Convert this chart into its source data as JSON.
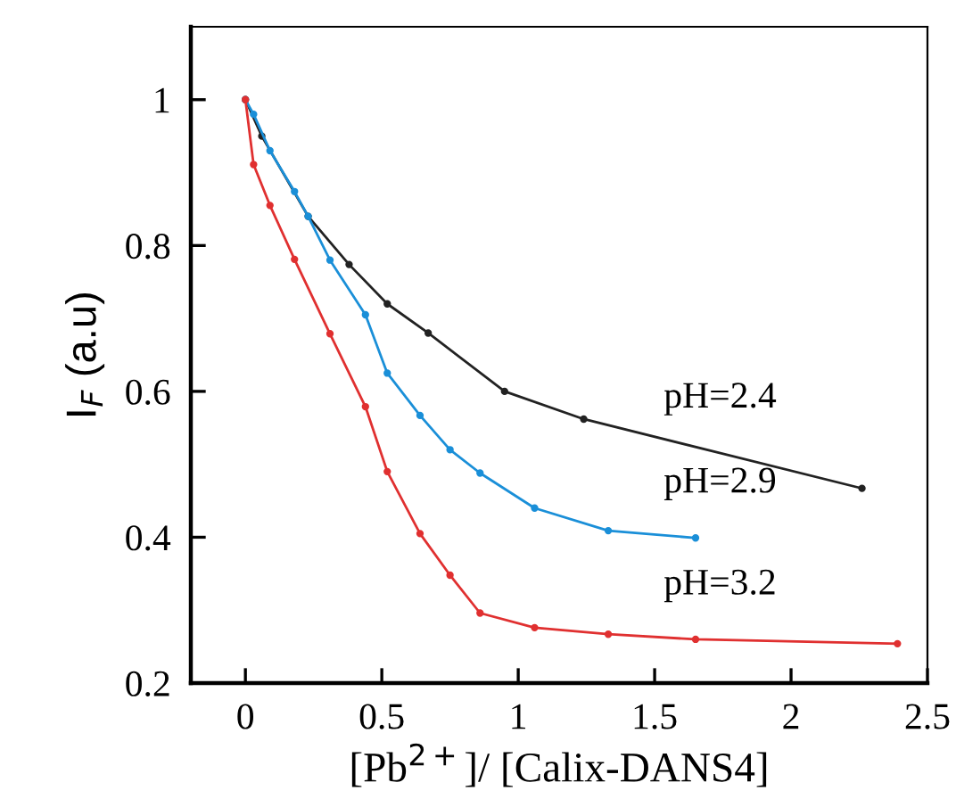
{
  "chart_data": {
    "type": "line",
    "xlabel": "[Pb$^{2+}$]/ [Calix-DANS4]",
    "ylabel": "I$_{F}$ (a.u)",
    "xlim": [
      -0.2,
      2.5
    ],
    "xticks": [
      0,
      0.5,
      1,
      1.5,
      2,
      2.5
    ],
    "ylim": [
      0.2,
      1.1
    ],
    "yticks": [
      0.2,
      0.4,
      0.6,
      0.8,
      1
    ],
    "grid": false,
    "legend": false,
    "marker": "circle",
    "line_style": "solid",
    "series": [
      {
        "name": "pH=2.4",
        "color": "#222222",
        "x": [
          0,
          0.06,
          0.23,
          0.38,
          0.52,
          0.67,
          0.95,
          1.24,
          2.26
        ],
        "values": [
          1.0,
          0.95,
          0.84,
          0.774,
          0.72,
          0.68,
          0.6,
          0.562,
          0.467
        ]
      },
      {
        "name": "pH=2.9",
        "color": "#1a8fd8",
        "x": [
          0,
          0.03,
          0.09,
          0.18,
          0.23,
          0.31,
          0.44,
          0.52,
          0.64,
          0.75,
          0.86,
          1.06,
          1.33,
          1.65
        ],
        "values": [
          1.0,
          0.98,
          0.93,
          0.874,
          0.84,
          0.78,
          0.705,
          0.625,
          0.567,
          0.52,
          0.488,
          0.44,
          0.409,
          0.399
        ]
      },
      {
        "name": "pH=3.2",
        "color": "#e03030",
        "x": [
          0,
          0.03,
          0.09,
          0.18,
          0.31,
          0.44,
          0.52,
          0.64,
          0.75,
          0.86,
          1.06,
          1.33,
          1.65,
          2.39
        ],
        "values": [
          1.0,
          0.911,
          0.855,
          0.781,
          0.679,
          0.579,
          0.49,
          0.405,
          0.348,
          0.296,
          0.276,
          0.267,
          0.26,
          0.254
        ]
      }
    ]
  }
}
